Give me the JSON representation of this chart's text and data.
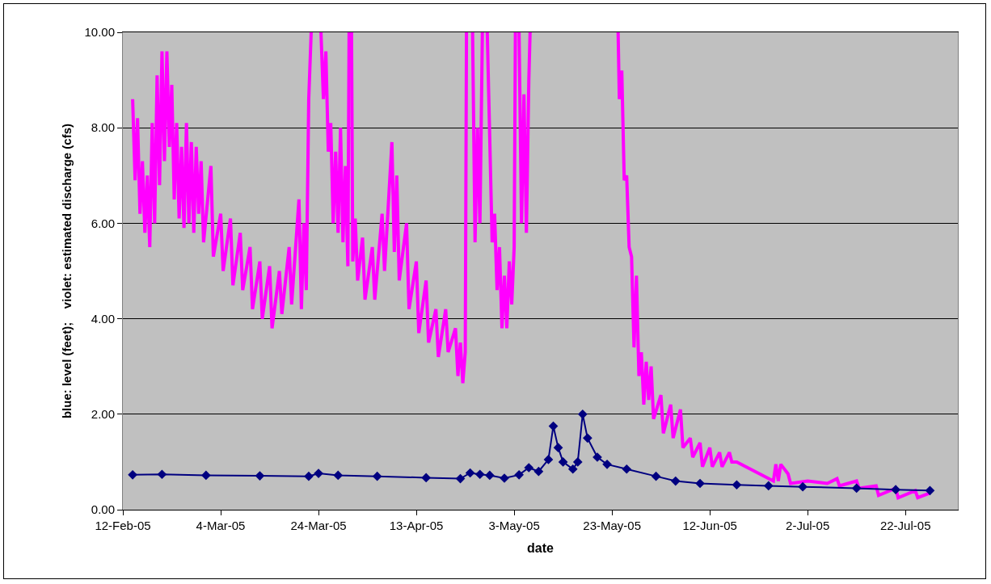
{
  "chart_data": {
    "type": "line",
    "xlabel": "date",
    "ylabel": "blue: level (feet);    violet: estimated discharge (cfs)",
    "xlim": [
      "2005-02-12",
      "2005-08-01T17:00"
    ],
    "xticks": [
      {
        "value": "2005-02-12",
        "label": "12-Feb-05"
      },
      {
        "value": "2005-03-04",
        "label": "4-Mar-05"
      },
      {
        "value": "2005-03-24",
        "label": "24-Mar-05"
      },
      {
        "value": "2005-04-13",
        "label": "13-Apr-05"
      },
      {
        "value": "2005-05-03",
        "label": "3-May-05"
      },
      {
        "value": "2005-05-23",
        "label": "23-May-05"
      },
      {
        "value": "2005-06-12",
        "label": "12-Jun-05"
      },
      {
        "value": "2005-07-02",
        "label": "2-Jul-05"
      },
      {
        "value": "2005-07-22",
        "label": "22-Jul-05"
      }
    ],
    "ylim": [
      0,
      10
    ],
    "yticks": [
      {
        "value": 0,
        "label": "0.00"
      },
      {
        "value": 2,
        "label": "2.00"
      },
      {
        "value": 4,
        "label": "4.00"
      },
      {
        "value": 6,
        "label": "6.00"
      },
      {
        "value": 8,
        "label": "8.00"
      },
      {
        "value": 10,
        "label": "10.00"
      }
    ],
    "grid": "y",
    "legend": false,
    "series": [
      {
        "color": "#ff00ff",
        "marker": "none",
        "x": [
          "2005-02-14",
          "2005-02-14T12:00",
          "2005-02-15",
          "2005-02-15T12:00",
          "2005-02-16",
          "2005-02-16T12:00",
          "2005-02-17",
          "2005-02-17T12:00",
          "2005-02-18",
          "2005-02-18T12:00",
          "2005-02-19",
          "2005-02-19T12:00",
          "2005-02-20",
          "2005-02-20T12:00",
          "2005-02-21",
          "2005-02-21T12:00",
          "2005-02-22",
          "2005-02-22T12:00",
          "2005-02-23",
          "2005-02-23T12:00",
          "2005-02-24",
          "2005-02-24T12:00",
          "2005-02-25",
          "2005-02-25T12:00",
          "2005-02-26",
          "2005-02-26T12:00",
          "2005-02-27",
          "2005-02-27T12:00",
          "2005-02-28",
          "2005-02-28T12:00",
          "2005-03-02",
          "2005-03-02T12:00",
          "2005-03-04",
          "2005-03-04T12:00",
          "2005-03-06",
          "2005-03-06T12:00",
          "2005-03-08",
          "2005-03-08T12:00",
          "2005-03-10",
          "2005-03-10T12:00",
          "2005-03-12",
          "2005-03-12T12:00",
          "2005-03-14",
          "2005-03-14T12:00",
          "2005-03-16",
          "2005-03-16T12:00",
          "2005-03-18",
          "2005-03-18T12:00",
          "2005-03-20",
          "2005-03-20T12:00",
          "2005-03-21",
          "2005-03-21T12:00",
          "2005-03-22",
          "2005-03-22T12:00",
          "2005-03-23",
          "2005-03-24T12:00",
          "2005-03-25",
          "2005-03-25T12:00",
          "2005-03-26",
          "2005-03-26T12:00",
          "2005-03-27",
          "2005-03-27T12:00",
          "2005-03-28",
          "2005-03-28T12:00",
          "2005-03-29",
          "2005-03-29T12:00",
          "2005-03-30",
          "2005-03-30T06:00",
          "2005-03-30T12:00",
          "2005-03-30T18:00",
          "2005-03-31",
          "2005-03-31T12:00",
          "2005-04-01",
          "2005-04-02",
          "2005-04-02T12:00",
          "2005-04-04",
          "2005-04-04T12:00",
          "2005-04-06",
          "2005-04-06T12:00",
          "2005-04-08",
          "2005-04-08T12:00",
          "2005-04-09",
          "2005-04-09T12:00",
          "2005-04-11",
          "2005-04-11T12:00",
          "2005-04-13",
          "2005-04-13T12:00",
          "2005-04-15",
          "2005-04-15T12:00",
          "2005-04-17",
          "2005-04-17T12:00",
          "2005-04-19",
          "2005-04-19T12:00",
          "2005-04-21",
          "2005-04-21T12:00",
          "2005-04-22",
          "2005-04-22T12:00",
          "2005-04-23",
          "2005-04-23T06:00",
          "2005-04-23T12:00",
          "2005-04-24T12:00",
          "2005-04-25",
          "2005-04-25T12:00",
          "2005-04-26",
          "2005-04-26T12:00",
          "2005-04-27",
          "2005-04-27T12:00",
          "2005-04-28",
          "2005-04-28T12:00",
          "2005-04-29",
          "2005-04-29T12:00",
          "2005-04-30",
          "2005-04-30T12:00",
          "2005-05-01",
          "2005-05-01T12:00",
          "2005-05-02",
          "2005-05-02T12:00",
          "2005-05-03",
          "2005-05-03T06:00",
          "2005-05-03T12:00",
          "2005-05-04",
          "2005-05-04T12:00",
          "2005-05-05",
          "2005-05-05T12:00",
          "2005-05-06",
          "2005-05-06T06:00",
          "2005-05-07",
          "2005-05-24T06:00",
          "2005-05-24T12:00",
          "2005-05-25",
          "2005-05-25T12:00",
          "2005-05-26",
          "2005-05-26T12:00",
          "2005-05-27",
          "2005-05-27T12:00",
          "2005-05-28",
          "2005-05-28T12:00",
          "2005-05-29",
          "2005-05-29T12:00",
          "2005-05-30",
          "2005-05-30T12:00",
          "2005-05-31",
          "2005-05-31T12:00",
          "2005-06-02",
          "2005-06-02T12:00",
          "2005-06-04",
          "2005-06-04T12:00",
          "2005-06-06",
          "2005-06-06T12:00",
          "2005-06-08",
          "2005-06-08T12:00",
          "2005-06-10",
          "2005-06-10T12:00",
          "2005-06-12",
          "2005-06-12T12:00",
          "2005-06-14",
          "2005-06-14T12:00",
          "2005-06-16",
          "2005-06-16T12:00",
          "2005-06-17T12:00",
          "2005-06-25",
          "2005-06-25T12:00",
          "2005-06-26",
          "2005-06-26T12:00",
          "2005-06-28",
          "2005-06-28T12:00",
          "2005-07-02",
          "2005-07-06",
          "2005-07-08",
          "2005-07-08T12:00",
          "2005-07-12",
          "2005-07-12T12:00",
          "2005-07-16",
          "2005-07-16T12:00",
          "2005-07-20",
          "2005-07-20T12:00",
          "2005-07-24",
          "2005-07-24T12:00",
          "2005-07-27"
        ],
        "values": [
          8.6,
          6.9,
          8.2,
          6.2,
          7.3,
          5.8,
          7.0,
          5.5,
          8.1,
          6.0,
          9.1,
          6.8,
          9.6,
          7.3,
          9.6,
          7.6,
          8.9,
          6.5,
          8.1,
          6.1,
          7.6,
          5.9,
          8.1,
          6.0,
          7.7,
          5.8,
          7.6,
          6.2,
          7.3,
          5.6,
          7.2,
          5.3,
          6.2,
          5.0,
          6.1,
          4.7,
          5.8,
          4.6,
          5.5,
          4.2,
          5.2,
          4.0,
          5.1,
          3.8,
          5.0,
          4.1,
          5.5,
          4.3,
          6.5,
          4.2,
          6.0,
          4.6,
          8.6,
          10,
          null,
          10,
          8.6,
          9.6,
          7.5,
          8.1,
          6.0,
          7.5,
          5.8,
          8.0,
          5.6,
          7.2,
          5.1,
          10,
          null,
          10,
          5.2,
          6.1,
          4.8,
          5.7,
          4.4,
          5.5,
          4.4,
          6.2,
          5.0,
          7.7,
          5.4,
          7.0,
          4.8,
          6.0,
          4.2,
          5.2,
          3.7,
          4.8,
          3.5,
          4.2,
          3.2,
          4.2,
          3.3,
          3.8,
          2.8,
          3.5,
          2.65,
          3.3,
          10,
          null,
          10,
          5.6,
          8.0,
          6.0,
          10,
          null,
          10,
          7.8,
          5.6,
          6.2,
          4.6,
          5.5,
          3.8,
          4.9,
          3.8,
          5.2,
          4.3,
          5.5,
          10,
          null,
          10,
          6.0,
          8.7,
          5.8,
          9.0,
          10,
          null,
          10,
          8.6,
          9.2,
          6.9,
          7.0,
          5.5,
          5.3,
          3.4,
          4.9,
          2.8,
          3.3,
          2.2,
          3.1,
          2.3,
          3.0,
          1.9,
          2.4,
          1.6,
          2.2,
          1.5,
          2.1,
          1.3,
          1.5,
          1.1,
          1.4,
          0.9,
          1.3,
          0.9,
          1.2,
          0.9,
          1.2,
          1.0,
          1.0,
          0.6,
          0.95,
          0.6,
          0.95,
          0.75,
          0.55,
          0.6,
          0.55,
          0.65,
          0.5,
          0.6,
          0.45,
          0.5,
          0.3,
          0.45,
          0.25,
          0.4,
          0.25,
          0.35
        ]
      },
      {
        "color": "#000080",
        "marker": "diamond",
        "x": [
          "2005-02-14",
          "2005-02-20",
          "2005-03-01",
          "2005-03-12",
          "2005-03-22",
          "2005-03-24",
          "2005-03-28",
          "2005-04-05",
          "2005-04-15",
          "2005-04-22",
          "2005-04-24",
          "2005-04-26",
          "2005-04-28",
          "2005-05-01",
          "2005-05-04",
          "2005-05-06",
          "2005-05-08",
          "2005-05-10",
          "2005-05-11",
          "2005-05-12",
          "2005-05-13",
          "2005-05-15",
          "2005-05-16",
          "2005-05-17",
          "2005-05-18",
          "2005-05-20",
          "2005-05-22",
          "2005-05-26",
          "2005-06-01",
          "2005-06-05",
          "2005-06-10",
          "2005-06-17T12:00",
          "2005-06-24",
          "2005-07-01",
          "2005-07-12",
          "2005-07-20",
          "2005-07-27"
        ],
        "values": [
          0.73,
          0.74,
          0.72,
          0.71,
          0.7,
          0.76,
          0.72,
          0.7,
          0.67,
          0.65,
          0.77,
          0.74,
          0.72,
          0.66,
          0.73,
          0.88,
          0.8,
          1.05,
          1.75,
          1.3,
          1.0,
          0.85,
          1.0,
          2.0,
          1.5,
          1.1,
          0.95,
          0.85,
          0.7,
          0.6,
          0.55,
          0.52,
          0.5,
          0.48,
          0.45,
          0.42,
          0.4
        ]
      }
    ]
  }
}
